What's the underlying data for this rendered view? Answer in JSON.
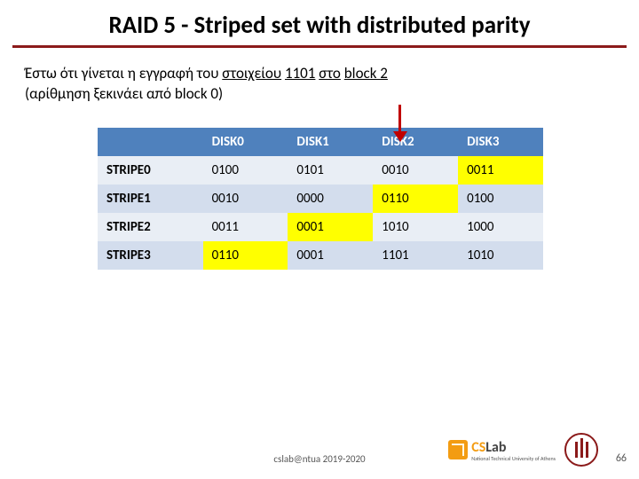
{
  "title": "RAID 5 - Striped set with distributed parity",
  "subtitle_parts": {
    "p1": "Έστω ότι γίνεται η εγγραφή του ",
    "ul1": "στοιχείου",
    "sp1": " ",
    "ul2": "1101",
    "sp2": " ",
    "ul3": "στο",
    "sp3": " ",
    "ul4": "block 2",
    "p2_line2": "(αρίθμηση ξεκινάει από block 0)"
  },
  "table": {
    "headers": [
      "",
      "DISK0",
      "DISK1",
      "DISK2",
      "DISK3"
    ],
    "rows": [
      {
        "hdr": "STRIPE0",
        "cells": [
          "0100",
          "0101",
          "0010",
          "0011"
        ],
        "parity_idx": 3
      },
      {
        "hdr": "STRIPE1",
        "cells": [
          "0010",
          "0000",
          "0110",
          "0100"
        ],
        "parity_idx": 2
      },
      {
        "hdr": "STRIPE2",
        "cells": [
          "0011",
          "0001",
          "1010",
          "1000"
        ],
        "parity_idx": 1
      },
      {
        "hdr": "STRIPE3",
        "cells": [
          "0110",
          "0001",
          "1101",
          "1010"
        ],
        "parity_idx": 0
      }
    ],
    "colors": {
      "header_bg": "#4f81bd",
      "header_fg": "#ffffff",
      "row_odd_bg": "#e9eef5",
      "row_even_bg": "#d3dded",
      "parity_bg": "#ffff00",
      "rule_color": "#8b1a1a",
      "arrow_color": "#c00000"
    }
  },
  "footer": {
    "center_text": "cslab@ntua 2019-2020",
    "page_number": "66",
    "logo_text_cs": "CS",
    "logo_text_lab": "Lab",
    "logo_sub": "National Technical University of Athens"
  }
}
